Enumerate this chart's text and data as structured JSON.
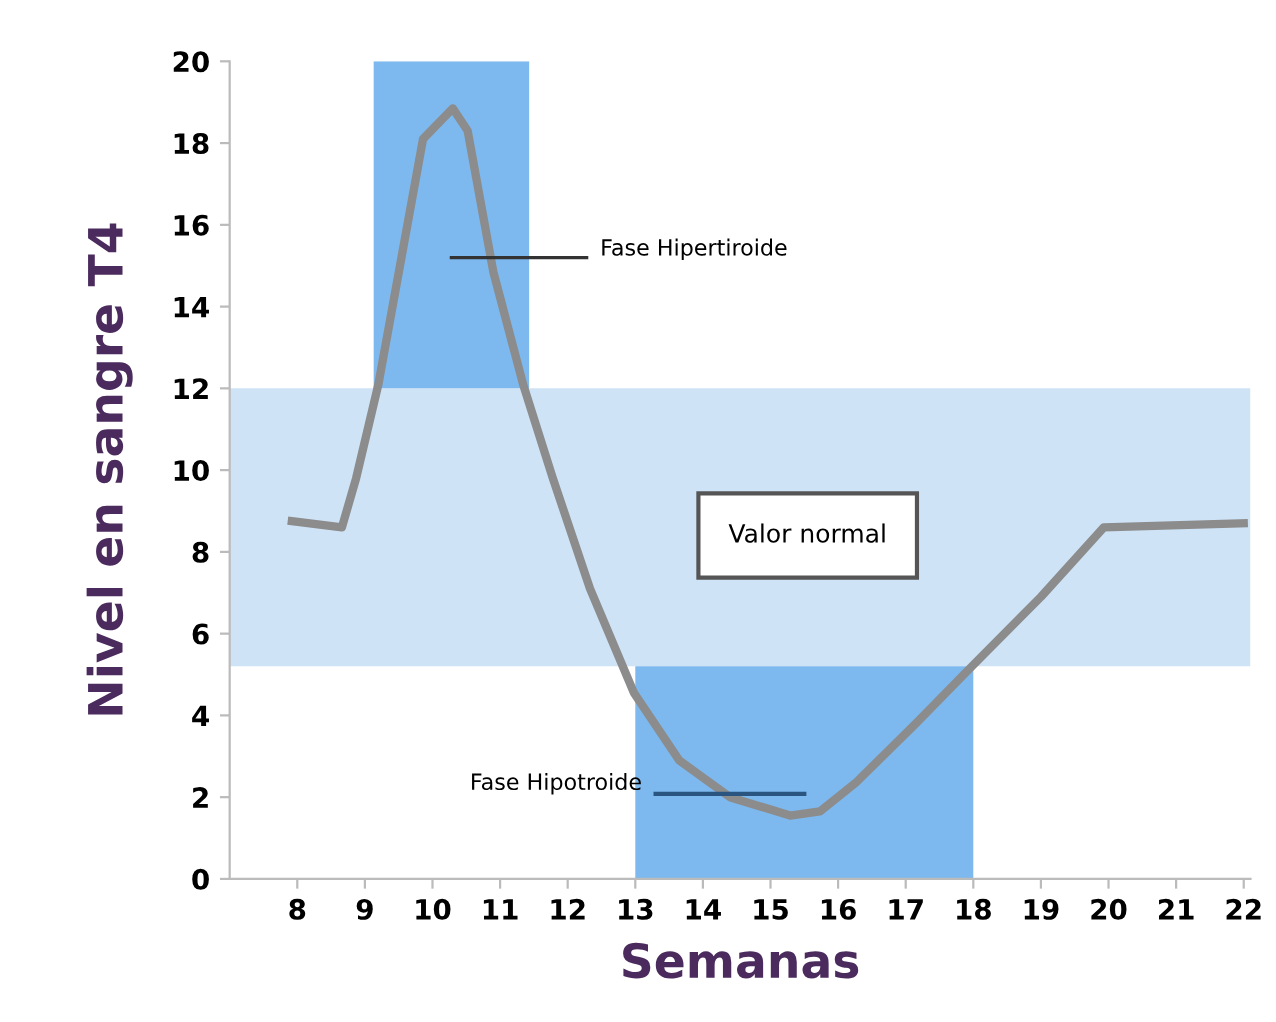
{
  "chart_data": {
    "type": "line",
    "xlabel": "Semanas",
    "ylabel": "Nivel en sangre T4",
    "x": [
      7.92,
      8.66,
      8.87,
      9.2,
      9.86,
      10.3,
      10.52,
      10.9,
      11.34,
      11.78,
      12.33,
      12.98,
      13.65,
      14.4,
      15.29,
      15.73,
      16.26,
      17.15,
      17.92,
      19.0,
      19.93,
      22.0
    ],
    "series": [
      {
        "color": "#8c8c8c",
        "values": [
          8.75,
          8.6,
          9.8,
          12.1,
          18.1,
          18.85,
          18.3,
          14.85,
          12.1,
          9.8,
          7.1,
          4.55,
          2.9,
          2.0,
          1.55,
          1.65,
          2.35,
          3.8,
          5.1,
          6.9,
          8.6,
          8.7
        ]
      }
    ],
    "xlim": [
      7,
      22.1
    ],
    "ylim": [
      0,
      20
    ],
    "xticks": [
      8,
      9,
      10,
      11,
      12,
      13,
      14,
      15,
      16,
      17,
      18,
      19,
      20,
      21,
      22
    ],
    "yticks": [
      0,
      2,
      4,
      6,
      8,
      10,
      12,
      14,
      16,
      18,
      20
    ],
    "bands": [
      {
        "axis": "y",
        "from": 5.2,
        "to": 12,
        "label": "Valor normal",
        "color": "#cfe3f7"
      },
      {
        "axis": "x",
        "from": 9.13,
        "to": 11.43,
        "label": "Fase Hipertiroide",
        "color": "#7db9ee"
      },
      {
        "axis": "x",
        "from": 13,
        "to": 18,
        "label": "Fase Hipotroide",
        "color": "#7db9ee"
      }
    ],
    "grid": false,
    "legend": false,
    "marker": "none",
    "line_style": "solid"
  }
}
